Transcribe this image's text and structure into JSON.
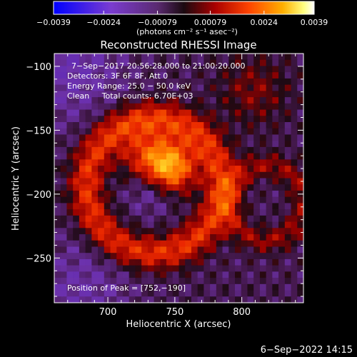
{
  "chart_data": {
    "type": "heatmap",
    "title": "Reconstructed RHESSI Image",
    "xlabel": "Heliocentric X (arcsec)",
    "ylabel": "Heliocentric Y (arcsec)",
    "xlim": [
      660,
      846
    ],
    "ylim": [
      -285,
      -90
    ],
    "x_ticks": [
      700,
      750,
      800
    ],
    "x_tick_labels": [
      "700",
      "750",
      "800"
    ],
    "y_ticks": [
      -100,
      -150,
      -200,
      -250
    ],
    "y_tick_labels": [
      "−100",
      "−150",
      "−200",
      "−250"
    ],
    "colorbar": {
      "range": [
        -0.0039,
        0.0039
      ],
      "ticks": [
        -0.0039,
        -0.0024,
        -0.00079,
        0.00079,
        0.0024,
        0.0039
      ],
      "tick_labels": [
        "−0.0039",
        "−0.0024",
        "−0.00079",
        "0.00079",
        "0.0024",
        "0.0039"
      ],
      "unit_label": "(photons cm⁻² s⁻¹ asec⁻²)",
      "colors": [
        "#0000ff",
        "#5a1edc",
        "#7a3cd0",
        "#6a2a9a",
        "#3a1a3a",
        "#9a0000",
        "#ff2a00",
        "#ffa000",
        "#ffff60",
        "#ffffff"
      ]
    },
    "annotations": [
      "7−Sep−2017 20:56:28.000 to 21:00:20.000",
      "Detectors: 3F 6F 8F, Att 0",
      "Energy Range: 25.0 − 50.0 keV",
      "Clean     Total counts: 6.70E+03",
      "Position of Peak = [752,−190]"
    ],
    "peak": {
      "x": 752,
      "y": -190
    }
  },
  "footer": {
    "timestamp": "6−Sep−2022 14:15"
  }
}
